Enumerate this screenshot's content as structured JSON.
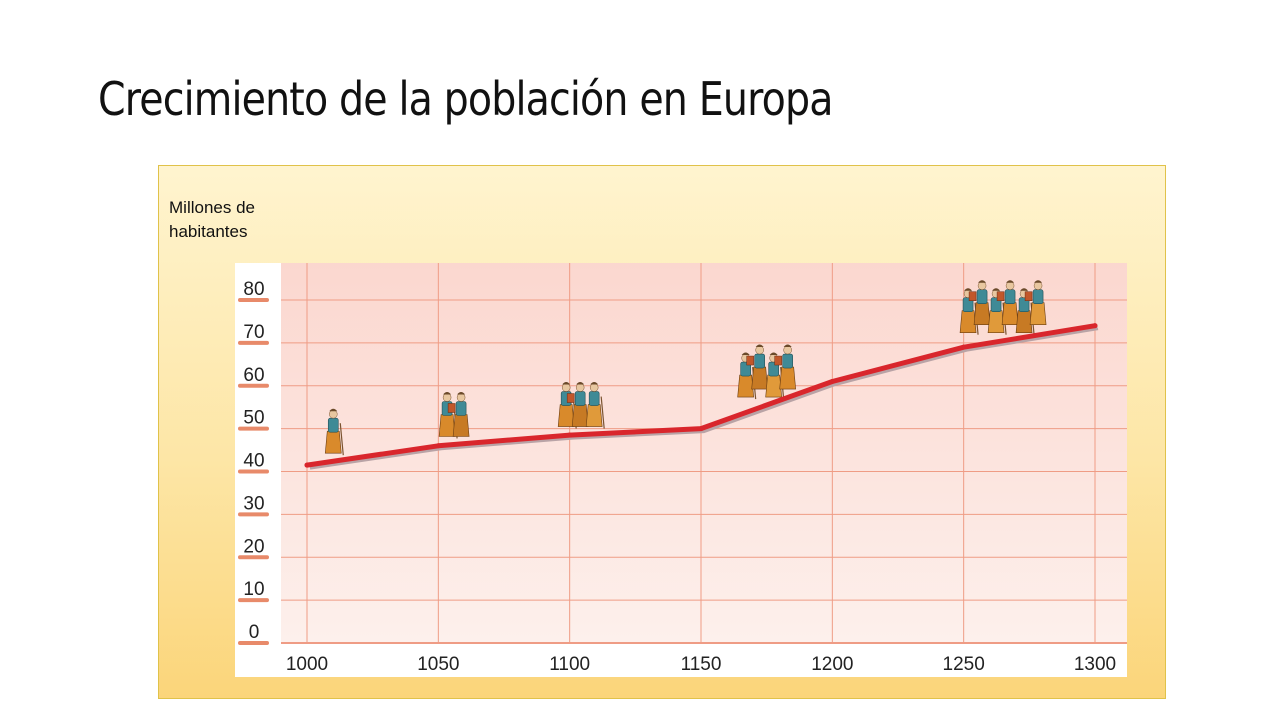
{
  "slide": {
    "title": "Crecimiento de la población en Europa"
  },
  "chart_data": {
    "type": "line",
    "title": "Crecimiento de la población en Europa",
    "ylabel": "Millones de habitantes",
    "xlabel": "",
    "x": [
      1000,
      1050,
      1100,
      1150,
      1200,
      1250,
      1300
    ],
    "series": [
      {
        "values": [
          41.5,
          46,
          48.5,
          50,
          61,
          69,
          74
        ]
      }
    ],
    "xlim": [
      1000,
      1300
    ],
    "ylim": [
      0,
      80
    ],
    "x_ticks": [
      "1000",
      "1050",
      "1100",
      "1150",
      "1200",
      "1250",
      "1300"
    ],
    "y_ticks": [
      "0",
      "10",
      "20",
      "30",
      "40",
      "50",
      "60",
      "70",
      "80"
    ],
    "grid": true,
    "colors": {
      "line": "#d9262c",
      "grid": "#ef9c85",
      "tick_mark": "#e88a6a"
    },
    "figure_groups": [
      {
        "x": 1010,
        "count": 1
      },
      {
        "x": 1056,
        "count": 2
      },
      {
        "x": 1104,
        "count": 3
      },
      {
        "x": 1175,
        "count": 4
      },
      {
        "x": 1265,
        "count": 6
      }
    ]
  }
}
